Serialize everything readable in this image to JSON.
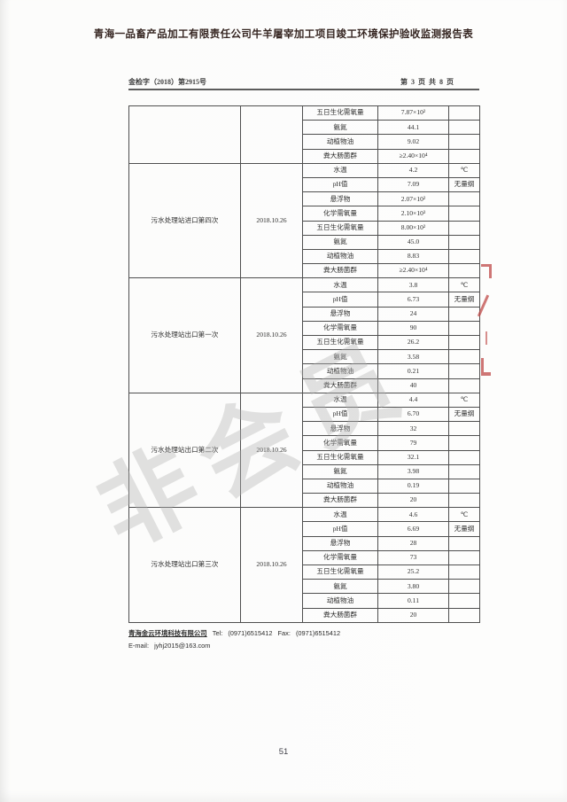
{
  "page": {
    "title": "青海一品畜产品加工有限责任公司牛羊屠宰加工项目竣工环境保护验收监测报告表",
    "doc_number": "金检字（2018）第2915号",
    "page_indicator": "第 3 页 共 8 页",
    "page_number": "51",
    "watermark_text": "非会员"
  },
  "colors": {
    "seal_red": "#bf4a48",
    "watermark_gray": "#b2b2b2",
    "table_border": "#4f4f4f"
  },
  "footer": {
    "company": "青海金云环境科技有限公司",
    "tel_label": "Tel:",
    "tel": "(0971)6515412",
    "fax_label": "Fax:",
    "fax": "(0971)6515412",
    "email_label": "E-mail:",
    "email": "jyhj2015@163.com"
  },
  "table": {
    "sections": [
      {
        "location": "",
        "date": "",
        "rows": [
          {
            "param": "五日生化需氧量",
            "value": "7.87×10²",
            "unit": ""
          },
          {
            "param": "氨氮",
            "value": "44.1",
            "unit": ""
          },
          {
            "param": "动植物油",
            "value": "9.02",
            "unit": ""
          },
          {
            "param": "粪大肠菌群",
            "value": "≥2.40×10⁴",
            "unit": ""
          }
        ]
      },
      {
        "location": "污水处理站进口第四次",
        "date": "2018.10.26",
        "rows": [
          {
            "param": "水温",
            "value": "4.2",
            "unit": "℃"
          },
          {
            "param": "pH值",
            "value": "7.09",
            "unit": "无量纲"
          },
          {
            "param": "悬浮物",
            "value": "2.07×10²",
            "unit": ""
          },
          {
            "param": "化学需氧量",
            "value": "2.10×10³",
            "unit": ""
          },
          {
            "param": "五日生化需氧量",
            "value": "8.00×10²",
            "unit": ""
          },
          {
            "param": "氨氮",
            "value": "45.0",
            "unit": ""
          },
          {
            "param": "动植物油",
            "value": "8.83",
            "unit": ""
          },
          {
            "param": "粪大肠菌群",
            "value": "≥2.40×10⁴",
            "unit": ""
          }
        ]
      },
      {
        "location": "污水处理站出口第一次",
        "date": "2018.10.26",
        "rows": [
          {
            "param": "水温",
            "value": "3.8",
            "unit": "℃"
          },
          {
            "param": "pH值",
            "value": "6.73",
            "unit": "无量纲"
          },
          {
            "param": "悬浮物",
            "value": "24",
            "unit": ""
          },
          {
            "param": "化学需氧量",
            "value": "90",
            "unit": ""
          },
          {
            "param": "五日生化需氧量",
            "value": "26.2",
            "unit": ""
          },
          {
            "param": "氨氮",
            "value": "3.58",
            "unit": ""
          },
          {
            "param": "动植物油",
            "value": "0.21",
            "unit": ""
          },
          {
            "param": "粪大肠菌群",
            "value": "40",
            "unit": ""
          }
        ]
      },
      {
        "location": "污水处理站出口第二次",
        "date": "2018.10.26",
        "rows": [
          {
            "param": "水温",
            "value": "4.4",
            "unit": "℃"
          },
          {
            "param": "pH值",
            "value": "6.70",
            "unit": "无量纲"
          },
          {
            "param": "悬浮物",
            "value": "32",
            "unit": ""
          },
          {
            "param": "化学需氧量",
            "value": "79",
            "unit": ""
          },
          {
            "param": "五日生化需氧量",
            "value": "32.1",
            "unit": ""
          },
          {
            "param": "氨氮",
            "value": "3.98",
            "unit": ""
          },
          {
            "param": "动植物油",
            "value": "0.19",
            "unit": ""
          },
          {
            "param": "粪大肠菌群",
            "value": "20",
            "unit": ""
          }
        ]
      },
      {
        "location": "污水处理站出口第三次",
        "date": "2018.10.26",
        "rows": [
          {
            "param": "水温",
            "value": "4.6",
            "unit": "℃"
          },
          {
            "param": "pH值",
            "value": "6.69",
            "unit": "无量纲"
          },
          {
            "param": "悬浮物",
            "value": "28",
            "unit": ""
          },
          {
            "param": "化学需氧量",
            "value": "73",
            "unit": ""
          },
          {
            "param": "五日生化需氧量",
            "value": "25.2",
            "unit": ""
          },
          {
            "param": "氨氮",
            "value": "3.80",
            "unit": ""
          },
          {
            "param": "动植物油",
            "value": "0.11",
            "unit": ""
          },
          {
            "param": "粪大肠菌群",
            "value": "20",
            "unit": ""
          }
        ]
      }
    ]
  }
}
